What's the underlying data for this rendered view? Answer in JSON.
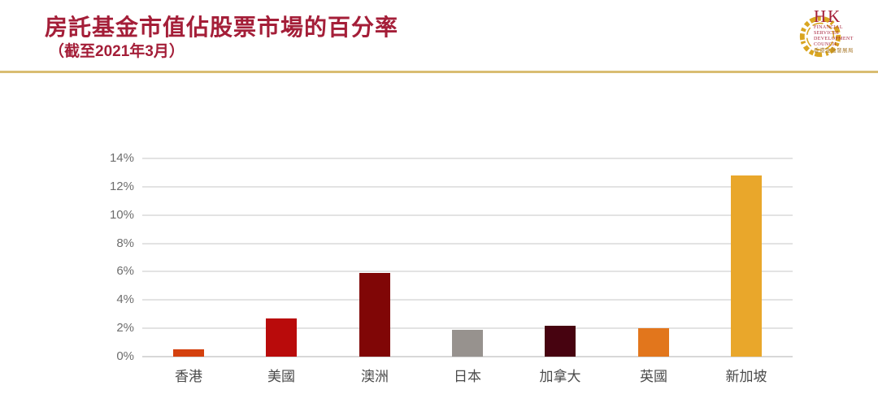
{
  "header": {
    "title": "房託基金市值佔股票市場的百分率",
    "subtitle": "（截至2021年3月）",
    "title_color": "#a41e38",
    "divider_color": "#d9bd72",
    "logo": {
      "monogram": "HK",
      "lines": [
        "FINANCIAL",
        "SERVICES",
        "DEVELOPMENT",
        "COUNCIL."
      ],
      "chinese": "香港金融發展局",
      "gold": "#d9a520",
      "crimson": "#a41e38"
    }
  },
  "chart_data": {
    "type": "bar",
    "title": "房託基金市值佔股票市場的百分率",
    "subtitle": "（截至2021年3月）",
    "categories": [
      "香港",
      "美國",
      "澳洲",
      "日本",
      "加拿大",
      "英國",
      "新加坡"
    ],
    "values": [
      0.5,
      2.7,
      5.9,
      1.9,
      2.2,
      2.0,
      12.8
    ],
    "bar_colors": [
      "#d4410e",
      "#b90b0b",
      "#800606",
      "#97928e",
      "#470310",
      "#e2761c",
      "#e9a72b"
    ],
    "xlabel": "",
    "ylabel": "",
    "ylim": [
      0,
      14
    ],
    "ytick_step": 2,
    "ytick_labels": [
      "0%",
      "2%",
      "4%",
      "6%",
      "8%",
      "10%",
      "12%",
      "14%"
    ],
    "grid": true,
    "legend": false,
    "gridline_color": "#e3e3e3",
    "axis_label_color": "#6e6e6e",
    "category_label_color": "#4a4a4a"
  }
}
